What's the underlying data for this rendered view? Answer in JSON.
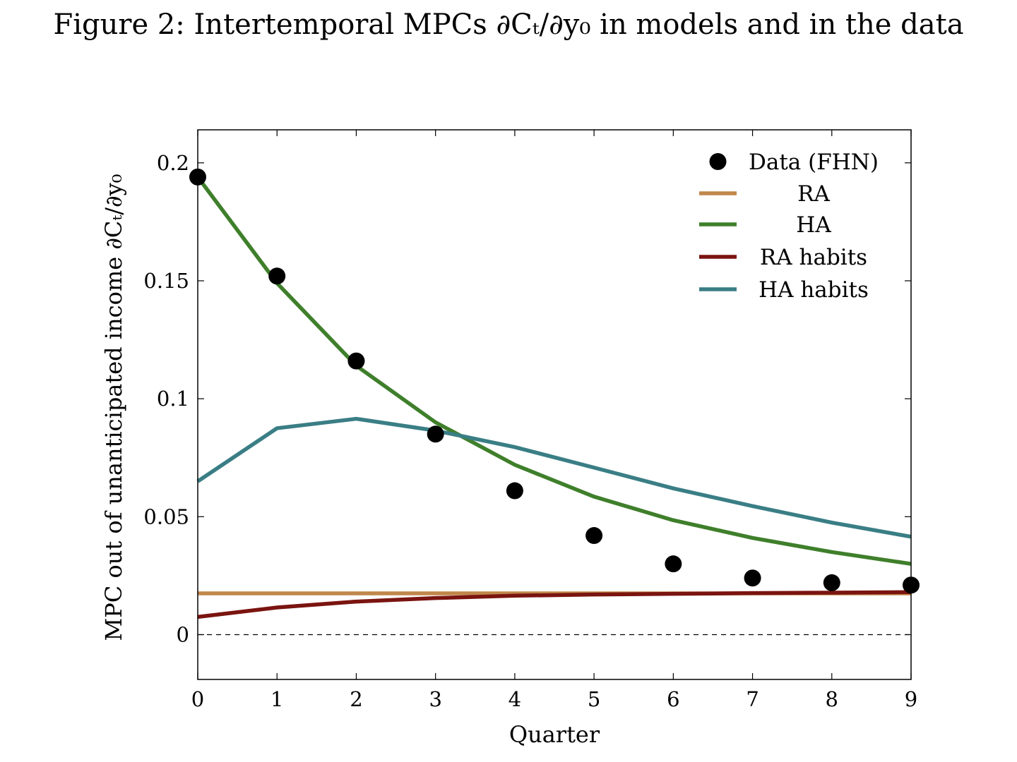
{
  "figure": {
    "title": "Figure 2: Intertemporal MPCs ∂Cₜ/∂y₀ in models and in the data"
  },
  "chart_data": {
    "type": "line",
    "xlabel": "Quarter",
    "ylabel": "MPC out of unanticipated income ∂Cₜ/∂y₀",
    "xlim": [
      0,
      9
    ],
    "ylim": [
      -0.019,
      0.214
    ],
    "x_ticks": [
      0,
      1,
      2,
      3,
      4,
      5,
      6,
      7,
      8,
      9
    ],
    "x_tick_labels": [
      "0",
      "1",
      "2",
      "3",
      "4",
      "5",
      "6",
      "7",
      "8",
      "9"
    ],
    "y_ticks": [
      0,
      0.05,
      0.1,
      0.15,
      0.2
    ],
    "y_tick_labels": [
      "0",
      "0.05",
      "0.1",
      "0.15",
      "0.2"
    ],
    "zero_line": "dashed",
    "grid": false,
    "legend_position": "top-right",
    "x": [
      0,
      1,
      2,
      3,
      4,
      5,
      6,
      7,
      8,
      9
    ],
    "series": [
      {
        "name": "Data (FHN)",
        "kind": "scatter",
        "color": "#000000",
        "values": [
          0.194,
          0.152,
          0.116,
          0.085,
          0.061,
          0.042,
          0.03,
          0.024,
          0.022,
          0.021
        ]
      },
      {
        "name": "RA",
        "kind": "line",
        "color": "#c0874b",
        "values": [
          0.0175,
          0.0175,
          0.0175,
          0.0175,
          0.0175,
          0.0175,
          0.0175,
          0.0175,
          0.0175,
          0.0175
        ]
      },
      {
        "name": "HA",
        "kind": "line",
        "color": "#3f7f2b",
        "values": [
          0.194,
          0.149,
          0.114,
          0.09,
          0.072,
          0.0585,
          0.0485,
          0.041,
          0.035,
          0.03
        ]
      },
      {
        "name": "RA habits",
        "kind": "line",
        "color": "#7a1410",
        "values": [
          0.0075,
          0.0115,
          0.014,
          0.0155,
          0.0165,
          0.017,
          0.0173,
          0.0176,
          0.0178,
          0.018
        ]
      },
      {
        "name": "HA habits",
        "kind": "line",
        "color": "#3a7e85",
        "values": [
          0.065,
          0.0875,
          0.0915,
          0.0865,
          0.0795,
          0.0708,
          0.062,
          0.0545,
          0.0475,
          0.0415
        ]
      }
    ]
  }
}
